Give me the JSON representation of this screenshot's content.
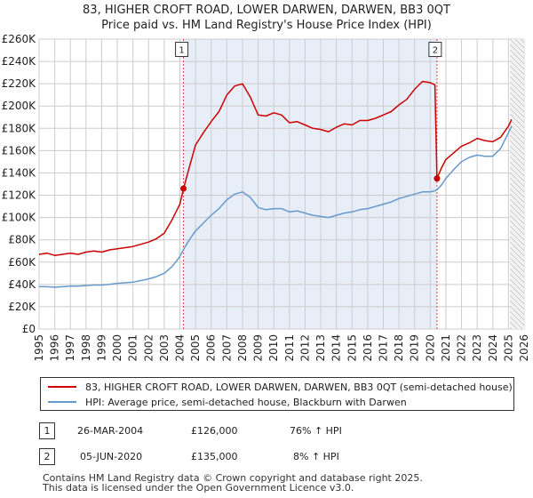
{
  "title_line1": "83, HIGHER CROFT ROAD, LOWER DARWEN, DARWEN, BB3 0QT",
  "title_line2": "Price paid vs. HM Land Registry's House Price Index (HPI)",
  "colors": {
    "price": "#cc0000",
    "hpi": "#6699cc",
    "shade": "#e8eef8",
    "grid": "#cccccc",
    "marker_line": "#dd4444"
  },
  "legend": {
    "price_label": "83, HIGHER CROFT ROAD, LOWER DARWEN, DARWEN, BB3 0QT (semi-detached house)",
    "hpi_label": "HPI: Average price, semi-detached house, Blackburn with Darwen"
  },
  "sales": [
    {
      "num": "1",
      "date": "26-MAR-2004",
      "price": "£126,000",
      "delta": "76% ↑ HPI"
    },
    {
      "num": "2",
      "date": "05-JUN-2020",
      "price": "£135,000",
      "delta": "8% ↑ HPI"
    }
  ],
  "footer_line1": "Contains HM Land Registry data © Crown copyright and database right 2025.",
  "footer_line2": "This data is licensed under the Open Government Licence v3.0.",
  "chart_data": {
    "type": "line",
    "title": "83, HIGHER CROFT ROAD, LOWER DARWEN, DARWEN, BB3 0QT",
    "subtitle": "Price paid vs. HM Land Registry's House Price Index (HPI)",
    "xlabel": "",
    "ylabel": "",
    "xlim": [
      1995,
      2026
    ],
    "ylim": [
      0,
      260000
    ],
    "x_ticks": [
      1995,
      1996,
      1997,
      1998,
      1999,
      2000,
      2001,
      2002,
      2003,
      2004,
      2005,
      2006,
      2007,
      2008,
      2009,
      2010,
      2011,
      2012,
      2013,
      2014,
      2015,
      2016,
      2017,
      2018,
      2019,
      2020,
      2021,
      2022,
      2023,
      2024,
      2025,
      2026
    ],
    "y_ticks": [
      0,
      20000,
      40000,
      60000,
      80000,
      100000,
      120000,
      140000,
      160000,
      180000,
      200000,
      220000,
      240000,
      260000
    ],
    "y_tick_labels": [
      "£0",
      "£20K",
      "£40K",
      "£60K",
      "£80K",
      "£100K",
      "£120K",
      "£140K",
      "£160K",
      "£180K",
      "£200K",
      "£220K",
      "£240K",
      "£260K"
    ],
    "shaded_region": [
      2004.23,
      2020.43
    ],
    "future_hatch_from": 2025.1,
    "markers": [
      {
        "label": "1",
        "x": 2004.23,
        "y": 126000
      },
      {
        "label": "2",
        "x": 2020.43,
        "y": 135000
      }
    ],
    "series": [
      {
        "name": "83, HIGHER CROFT ROAD, LOWER DARWEN, DARWEN, BB3 0QT (semi-detached house)",
        "x": [
          1995,
          1995.5,
          1996,
          1996.5,
          1997,
          1997.5,
          1998,
          1998.5,
          1999,
          1999.5,
          2000,
          2000.5,
          2001,
          2001.5,
          2002,
          2002.5,
          2003,
          2003.5,
          2004,
          2004.23,
          2004.6,
          2005,
          2005.5,
          2006,
          2006.5,
          2007,
          2007.5,
          2008,
          2008.5,
          2009,
          2009.5,
          2010,
          2010.5,
          2011,
          2011.5,
          2012,
          2012.5,
          2013,
          2013.5,
          2014,
          2014.5,
          2015,
          2015.5,
          2016,
          2016.5,
          2017,
          2017.5,
          2018,
          2018.5,
          2019,
          2019.5,
          2020,
          2020.3,
          2020.43,
          2020.7,
          2021,
          2021.5,
          2022,
          2022.5,
          2023,
          2023.5,
          2024,
          2024.5,
          2025,
          2025.2
        ],
        "values": [
          67000,
          68000,
          66000,
          67000,
          68000,
          67000,
          69000,
          70000,
          69000,
          71000,
          72000,
          73000,
          74000,
          76000,
          78000,
          81000,
          86000,
          98000,
          112000,
          126000,
          145000,
          165000,
          176000,
          186000,
          195000,
          210000,
          218000,
          220000,
          208000,
          192000,
          191000,
          194000,
          192000,
          185000,
          186000,
          183000,
          180000,
          179000,
          177000,
          181000,
          184000,
          183000,
          187000,
          187000,
          189000,
          192000,
          195000,
          201000,
          206000,
          215000,
          222000,
          221000,
          219000,
          135000,
          144000,
          152000,
          158000,
          164000,
          167000,
          171000,
          169000,
          168000,
          172000,
          182000,
          188000
        ]
      },
      {
        "name": "HPI: Average price, semi-detached house, Blackburn with Darwen",
        "x": [
          1995,
          1995.5,
          1996,
          1996.5,
          1997,
          1997.5,
          1998,
          1998.5,
          1999,
          1999.5,
          2000,
          2000.5,
          2001,
          2001.5,
          2002,
          2002.5,
          2003,
          2003.5,
          2004,
          2004.23,
          2004.6,
          2005,
          2005.5,
          2006,
          2006.5,
          2007,
          2007.5,
          2008,
          2008.5,
          2009,
          2009.5,
          2010,
          2010.5,
          2011,
          2011.5,
          2012,
          2012.5,
          2013,
          2013.5,
          2014,
          2014.5,
          2015,
          2015.5,
          2016,
          2016.5,
          2017,
          2017.5,
          2018,
          2018.5,
          2019,
          2019.5,
          2020,
          2020.3,
          2020.43,
          2020.7,
          2021,
          2021.5,
          2022,
          2022.5,
          2023,
          2023.5,
          2024,
          2024.5,
          2025,
          2025.2
        ],
        "values": [
          38000,
          38000,
          37500,
          38000,
          38500,
          38500,
          39000,
          39500,
          39500,
          40000,
          41000,
          41500,
          42000,
          43500,
          45000,
          47000,
          50000,
          56000,
          65000,
          71500,
          80000,
          88000,
          95000,
          102000,
          108000,
          116000,
          121000,
          123000,
          118000,
          109000,
          107000,
          108000,
          108000,
          105000,
          106000,
          104000,
          102000,
          101000,
          100000,
          102000,
          104000,
          105000,
          107000,
          108000,
          110000,
          112000,
          114000,
          117000,
          119000,
          121000,
          123000,
          123000,
          124000,
          125000,
          129000,
          135000,
          143000,
          150000,
          154000,
          156000,
          155000,
          155000,
          162000,
          176000,
          182000
        ]
      }
    ]
  }
}
